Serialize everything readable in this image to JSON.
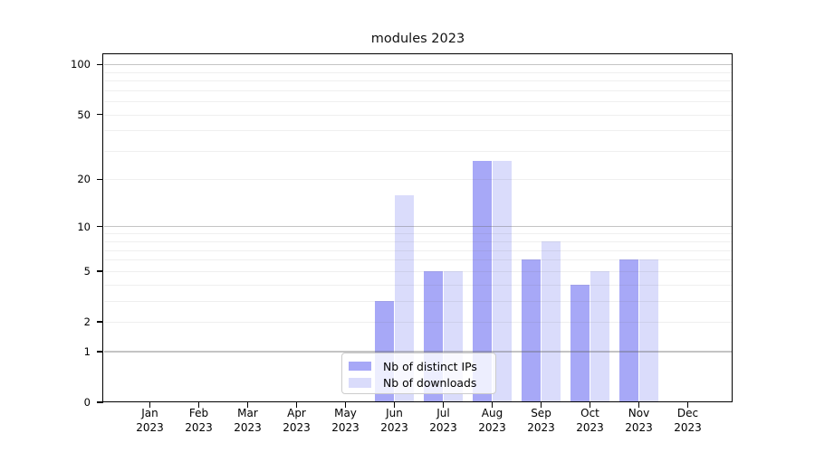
{
  "chart_data": {
    "type": "bar",
    "title": "modules 2023",
    "x_months": [
      "Jan",
      "Feb",
      "Mar",
      "Apr",
      "May",
      "Jun",
      "Jul",
      "Aug",
      "Sep",
      "Oct",
      "Nov",
      "Dec"
    ],
    "x_year": "2023",
    "series": [
      {
        "name": "Nb of distinct IPs",
        "color": "#a7a8f7",
        "values": [
          0,
          0,
          0,
          0,
          0,
          3,
          5,
          26,
          6,
          4,
          6,
          0
        ]
      },
      {
        "name": "Nb of downloads",
        "color": "#dadcfb",
        "values": [
          0,
          0,
          0,
          0,
          0,
          16,
          5,
          26,
          8,
          5,
          6,
          0
        ]
      }
    ],
    "yscale": "log1p",
    "yticks": [
      0,
      1,
      2,
      5,
      10,
      20,
      50,
      100
    ],
    "ylim": [
      0,
      116
    ],
    "grid": "horizontal",
    "grid_major_values": [
      1,
      10,
      100
    ],
    "grid_minor_values": [
      2,
      3,
      4,
      5,
      6,
      7,
      8,
      9,
      20,
      30,
      40,
      50,
      60,
      70,
      80,
      90
    ],
    "legend_position": "lower center",
    "background_color": "#ffffff"
  }
}
